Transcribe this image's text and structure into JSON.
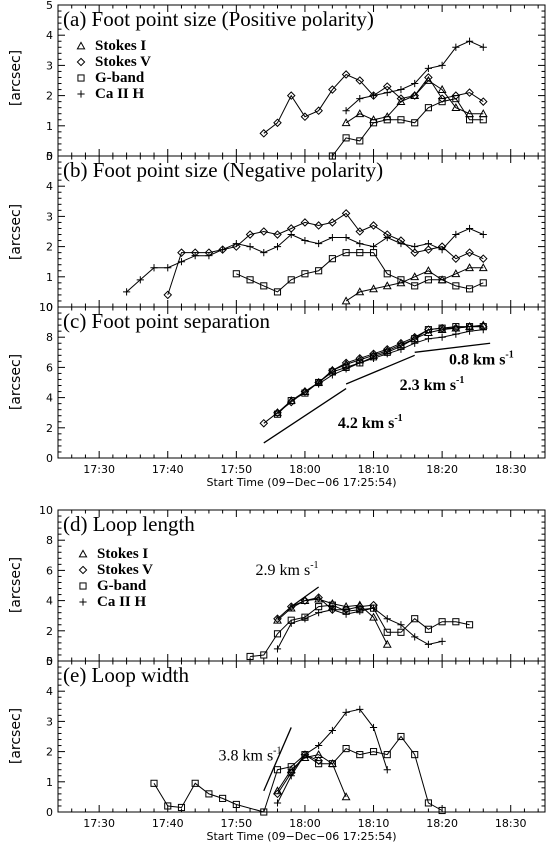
{
  "x_tick_labels": [
    "17:30",
    "17:40",
    "17:50",
    "18:00",
    "18:10",
    "18:20",
    "18:30"
  ],
  "x_title": "Start Time (09−Dec−06 17:25:54)",
  "y_label": "[arcsec]",
  "legend": [
    {
      "label": "Stokes I",
      "symbol": "triangle"
    },
    {
      "label": "Stokes V",
      "symbol": "diamond"
    },
    {
      "label": "G-band",
      "symbol": "square"
    },
    {
      "label": "Ca II H",
      "symbol": "plus"
    }
  ],
  "chart_data": [
    {
      "id": "a",
      "type": "line",
      "title": "(a) Foot point size (Positive polarity)",
      "xlabel": "",
      "ylabel": "[arcsec]",
      "xlim": [
        17.4,
        18.5833
      ],
      "ylim": [
        0,
        5
      ],
      "yticks": [
        0,
        1,
        2,
        3,
        4,
        5
      ],
      "x_axis": "time (hours)",
      "legend": true,
      "series": [
        {
          "name": "Stokes I",
          "symbol": "triangle",
          "x": [
            18.1,
            18.1333,
            18.1667,
            18.2,
            18.2333,
            18.2667,
            18.3,
            18.3333,
            18.3667,
            18.4,
            18.4333
          ],
          "y": [
            1.1,
            1.4,
            1.2,
            1.3,
            1.8,
            2.0,
            2.5,
            2.2,
            1.6,
            1.4,
            1.4
          ]
        },
        {
          "name": "Stokes V",
          "symbol": "diamond",
          "x": [
            17.9,
            17.9333,
            17.9667,
            18.0,
            18.0333,
            18.0667,
            18.1,
            18.1333,
            18.1667,
            18.2,
            18.2333,
            18.2667,
            18.3,
            18.3333,
            18.3667,
            18.4,
            18.4333
          ],
          "y": [
            0.75,
            1.1,
            2.0,
            1.3,
            1.5,
            2.2,
            2.7,
            2.5,
            2.0,
            2.3,
            1.9,
            2.0,
            2.6,
            1.9,
            2.0,
            2.1,
            1.8
          ]
        },
        {
          "name": "G-band",
          "symbol": "square",
          "x": [
            18.0667,
            18.1,
            18.1333,
            18.1667,
            18.2,
            18.2333,
            18.2667,
            18.3,
            18.3333,
            18.3667,
            18.4,
            18.4333
          ],
          "y": [
            0.0,
            0.6,
            0.5,
            1.1,
            1.2,
            1.2,
            1.1,
            1.6,
            1.8,
            1.9,
            1.2,
            1.2
          ]
        },
        {
          "name": "Ca II H",
          "symbol": "plus",
          "x": [
            18.1,
            18.1333,
            18.1667,
            18.2,
            18.2333,
            18.2667,
            18.3,
            18.3333,
            18.3667,
            18.4,
            18.4333
          ],
          "y": [
            1.5,
            1.9,
            2.0,
            2.1,
            2.2,
            2.4,
            2.9,
            3.0,
            3.6,
            3.8,
            3.6
          ]
        }
      ]
    },
    {
      "id": "b",
      "type": "line",
      "title": "(b) Foot point size (Negative polarity)",
      "xlabel": "",
      "ylabel": "[arcsec]",
      "xlim": [
        17.4,
        18.5833
      ],
      "ylim": [
        0,
        5
      ],
      "yticks": [
        0,
        1,
        2,
        3,
        4,
        5
      ],
      "legend": false,
      "series": [
        {
          "name": "Stokes I",
          "symbol": "triangle",
          "x": [
            18.1,
            18.1333,
            18.1667,
            18.2,
            18.2333,
            18.2667,
            18.3,
            18.3333,
            18.3667,
            18.4,
            18.4333
          ],
          "y": [
            0.2,
            0.5,
            0.6,
            0.7,
            0.8,
            1.0,
            1.2,
            0.9,
            1.1,
            1.3,
            1.3
          ]
        },
        {
          "name": "Stokes V",
          "symbol": "diamond",
          "x": [
            17.6667,
            17.7,
            17.7333,
            17.7667,
            17.8,
            17.8333,
            17.8667,
            17.9,
            17.9333,
            17.9667,
            18.0,
            18.0333,
            18.0667,
            18.1,
            18.1333,
            18.1667,
            18.2,
            18.2333,
            18.2667,
            18.3,
            18.3333,
            18.3667,
            18.4,
            18.4333
          ],
          "y": [
            0.4,
            1.8,
            1.8,
            1.8,
            1.9,
            2.0,
            2.4,
            2.5,
            2.4,
            2.6,
            2.8,
            2.7,
            2.8,
            3.1,
            2.5,
            2.7,
            2.4,
            2.2,
            1.8,
            1.9,
            2.0,
            1.6,
            1.8,
            1.6
          ]
        },
        {
          "name": "G-band",
          "symbol": "square",
          "x": [
            17.8333,
            17.8667,
            17.9,
            17.9333,
            17.9667,
            18.0,
            18.0333,
            18.0667,
            18.1,
            18.1333,
            18.1667,
            18.2,
            18.2333,
            18.2667,
            18.3,
            18.3333,
            18.3667,
            18.4,
            18.4333
          ],
          "y": [
            1.1,
            0.9,
            0.7,
            0.5,
            0.9,
            1.1,
            1.2,
            1.6,
            1.8,
            1.8,
            1.8,
            1.1,
            0.9,
            0.7,
            0.9,
            0.9,
            0.7,
            0.6,
            0.8
          ]
        },
        {
          "name": "Ca II H",
          "symbol": "plus",
          "x": [
            17.5667,
            17.6,
            17.6333,
            17.6667,
            17.7,
            17.7333,
            17.7667,
            17.8,
            17.8333,
            17.8667,
            17.9,
            17.9333,
            17.9667,
            18.0,
            18.0333,
            18.0667,
            18.1,
            18.1333,
            18.1667,
            18.2,
            18.2333,
            18.2667,
            18.3,
            18.3333,
            18.3667,
            18.4,
            18.4333
          ],
          "y": [
            0.5,
            0.9,
            1.3,
            1.3,
            1.5,
            1.7,
            1.7,
            1.9,
            2.1,
            2.0,
            1.8,
            2.0,
            2.4,
            2.2,
            2.1,
            2.3,
            2.3,
            2.1,
            2.0,
            2.3,
            2.1,
            2.0,
            2.1,
            1.9,
            2.4,
            2.6,
            2.4
          ]
        }
      ]
    },
    {
      "id": "c",
      "type": "line",
      "title": "(c) Foot point separation",
      "xlabel": "Start Time (09−Dec−06 17:25:54)",
      "ylabel": "[arcsec]",
      "xlim": [
        17.4,
        18.5833
      ],
      "ylim": [
        0,
        10
      ],
      "yticks": [
        0,
        2,
        4,
        6,
        8,
        10
      ],
      "legend": false,
      "series": [
        {
          "name": "Stokes I",
          "symbol": "triangle",
          "x": [
            17.9333,
            17.9667,
            18.0,
            18.0333,
            18.0667,
            18.1,
            18.1333,
            18.1667,
            18.2,
            18.2333,
            18.2667,
            18.3,
            18.3333,
            18.3667,
            18.4,
            18.4333
          ],
          "y": [
            3.0,
            3.8,
            4.4,
            5.0,
            5.8,
            6.2,
            6.5,
            6.8,
            7.1,
            7.5,
            7.9,
            8.3,
            8.5,
            8.6,
            8.7,
            8.8
          ]
        },
        {
          "name": "Stokes V",
          "symbol": "diamond",
          "x": [
            17.9,
            17.9333,
            17.9667,
            18.0,
            18.0333,
            18.0667,
            18.1,
            18.1333,
            18.1667,
            18.2,
            18.2333,
            18.2667,
            18.3,
            18.3333,
            18.3667,
            18.4,
            18.4333
          ],
          "y": [
            2.3,
            3.0,
            3.7,
            4.4,
            5.0,
            5.8,
            6.3,
            6.6,
            6.9,
            7.2,
            7.6,
            8.0,
            8.5,
            8.6,
            8.6,
            8.7,
            8.7
          ]
        },
        {
          "name": "G-band",
          "symbol": "square",
          "x": [
            17.9333,
            17.9667,
            18.0,
            18.0333,
            18.0667,
            18.1,
            18.1333,
            18.1667,
            18.2,
            18.2333,
            18.2667,
            18.3,
            18.3333,
            18.3667,
            18.4,
            18.4333
          ],
          "y": [
            2.9,
            3.8,
            4.3,
            5.0,
            5.7,
            6.0,
            6.3,
            6.7,
            7.0,
            7.4,
            7.9,
            8.5,
            8.6,
            8.7,
            8.7,
            8.7
          ]
        },
        {
          "name": "Ca II H",
          "symbol": "plus",
          "x": [
            18.0333,
            18.0667,
            18.1,
            18.1333,
            18.1667,
            18.2,
            18.2333,
            18.2667,
            18.3,
            18.3333,
            18.3667,
            18.4,
            18.4333
          ],
          "y": [
            4.9,
            5.5,
            5.9,
            6.3,
            6.6,
            6.9,
            7.2,
            7.6,
            7.9,
            8.0,
            8.2,
            8.4,
            8.5
          ]
        }
      ],
      "annotations": [
        {
          "text": "4.2 km s",
          "sup": "-1",
          "bold": true,
          "line": {
            "x": [
              17.9,
              18.1
            ],
            "y": [
              1.0,
              4.6
            ]
          },
          "label_at": {
            "x": 18.08,
            "y": 2.0
          }
        },
        {
          "text": "2.3 km s",
          "sup": "-1",
          "bold": true,
          "line": {
            "x": [
              18.1,
              18.2667
            ],
            "y": [
              4.9,
              6.8
            ]
          },
          "label_at": {
            "x": 18.23,
            "y": 4.5
          }
        },
        {
          "text": "0.8 km s",
          "sup": "-1",
          "bold": true,
          "line": {
            "x": [
              18.2667,
              18.45
            ],
            "y": [
              7.0,
              7.6
            ]
          },
          "label_at": {
            "x": 18.35,
            "y": 6.2
          }
        }
      ]
    },
    {
      "id": "d",
      "type": "line",
      "title": "(d) Loop length",
      "xlabel": "",
      "ylabel": "[arcsec]",
      "xlim": [
        17.4,
        18.5833
      ],
      "ylim": [
        0,
        10
      ],
      "yticks": [
        0,
        2,
        4,
        6,
        8,
        10
      ],
      "legend": true,
      "series": [
        {
          "name": "Stokes I",
          "symbol": "triangle",
          "x": [
            17.9333,
            17.9667,
            18.0,
            18.0333,
            18.0667,
            18.1,
            18.1333,
            18.1667,
            18.2
          ],
          "y": [
            2.7,
            3.5,
            4.0,
            4.1,
            3.8,
            3.6,
            3.7,
            2.9,
            1.1
          ]
        },
        {
          "name": "Stokes V",
          "symbol": "diamond",
          "x": [
            17.9333,
            17.9667,
            18.0,
            18.0333,
            18.0667,
            18.1,
            18.1333,
            18.1667
          ],
          "y": [
            2.8,
            3.6,
            4.0,
            4.2,
            3.4,
            3.4,
            3.6,
            3.7
          ]
        },
        {
          "name": "G-band",
          "symbol": "square",
          "x": [
            17.8667,
            17.9,
            17.9333,
            17.9667,
            18.0,
            18.0333,
            18.0667,
            18.1,
            18.1333,
            18.1667,
            18.2,
            18.2333,
            18.2667,
            18.3,
            18.3333,
            18.3667,
            18.4
          ],
          "y": [
            0.3,
            0.4,
            1.8,
            2.7,
            2.9,
            3.6,
            3.7,
            3.3,
            3.4,
            3.5,
            1.9,
            1.9,
            2.8,
            2.1,
            2.6,
            2.6,
            2.4
          ]
        },
        {
          "name": "Ca II H",
          "symbol": "plus",
          "x": [
            17.9333,
            17.9667,
            18.0,
            18.0333,
            18.0667,
            18.1,
            18.1333,
            18.1667,
            18.2,
            18.2333,
            18.2667,
            18.3,
            18.3333
          ],
          "y": [
            0.8,
            2.5,
            2.8,
            3.2,
            3.4,
            3.1,
            3.3,
            3.5,
            2.8,
            2.4,
            1.6,
            1.1,
            1.3
          ]
        }
      ],
      "annotations": [
        {
          "text": "2.9 km s",
          "sup": "-1",
          "bold": false,
          "line": {
            "x": [
              17.9667,
              18.0333
            ],
            "y": [
              3.6,
              4.9
            ]
          },
          "label_at": {
            "x": 17.88,
            "y": 5.7
          }
        }
      ]
    },
    {
      "id": "e",
      "type": "line",
      "title": "(e) Loop width",
      "xlabel": "Start Time (09−Dec−06 17:25:54)",
      "ylabel": "[arcsec]",
      "xlim": [
        17.4,
        18.5833
      ],
      "ylim": [
        0,
        5
      ],
      "yticks": [
        0,
        1,
        2,
        3,
        4,
        5
      ],
      "legend": false,
      "series": [
        {
          "name": "Stokes I",
          "symbol": "triangle",
          "x": [
            17.9333,
            17.9667,
            18.0,
            18.0333,
            18.0667,
            18.1
          ],
          "y": [
            0.7,
            1.4,
            1.8,
            1.9,
            1.6,
            0.5
          ]
        },
        {
          "name": "Stokes V",
          "symbol": "diamond",
          "x": [
            17.9333,
            17.9667,
            18.0,
            18.0333
          ],
          "y": [
            0.6,
            1.3,
            1.9,
            1.7
          ]
        },
        {
          "name": "G-band",
          "symbol": "square",
          "x": [
            17.6333,
            17.6667,
            17.7,
            17.7333,
            17.7667,
            17.8,
            17.8333,
            17.9,
            17.9333,
            17.9667,
            18.0,
            18.0333,
            18.0667,
            18.1,
            18.1333,
            18.1667,
            18.2,
            18.2333,
            18.2667,
            18.3,
            18.3333
          ],
          "y": [
            0.95,
            0.2,
            0.15,
            0.95,
            0.6,
            0.45,
            0.25,
            0.0,
            1.4,
            1.5,
            1.9,
            1.6,
            1.6,
            2.1,
            1.9,
            2.0,
            1.9,
            2.5,
            1.9,
            0.3,
            0.05
          ]
        },
        {
          "name": "Ca II H",
          "symbol": "plus",
          "x": [
            17.9333,
            17.9667,
            18.0,
            18.0333,
            18.0667,
            18.1,
            18.1333,
            18.1667,
            18.2
          ],
          "y": [
            0.3,
            1.2,
            1.9,
            2.2,
            2.7,
            3.3,
            3.4,
            2.8,
            1.4
          ]
        }
      ],
      "annotations": [
        {
          "text": "3.8 km s",
          "sup": "-1",
          "bold": false,
          "line": {
            "x": [
              17.9,
              17.9667
            ],
            "y": [
              0.7,
              2.8
            ]
          },
          "label_at": {
            "x": 17.79,
            "y": 1.7
          }
        }
      ]
    }
  ]
}
